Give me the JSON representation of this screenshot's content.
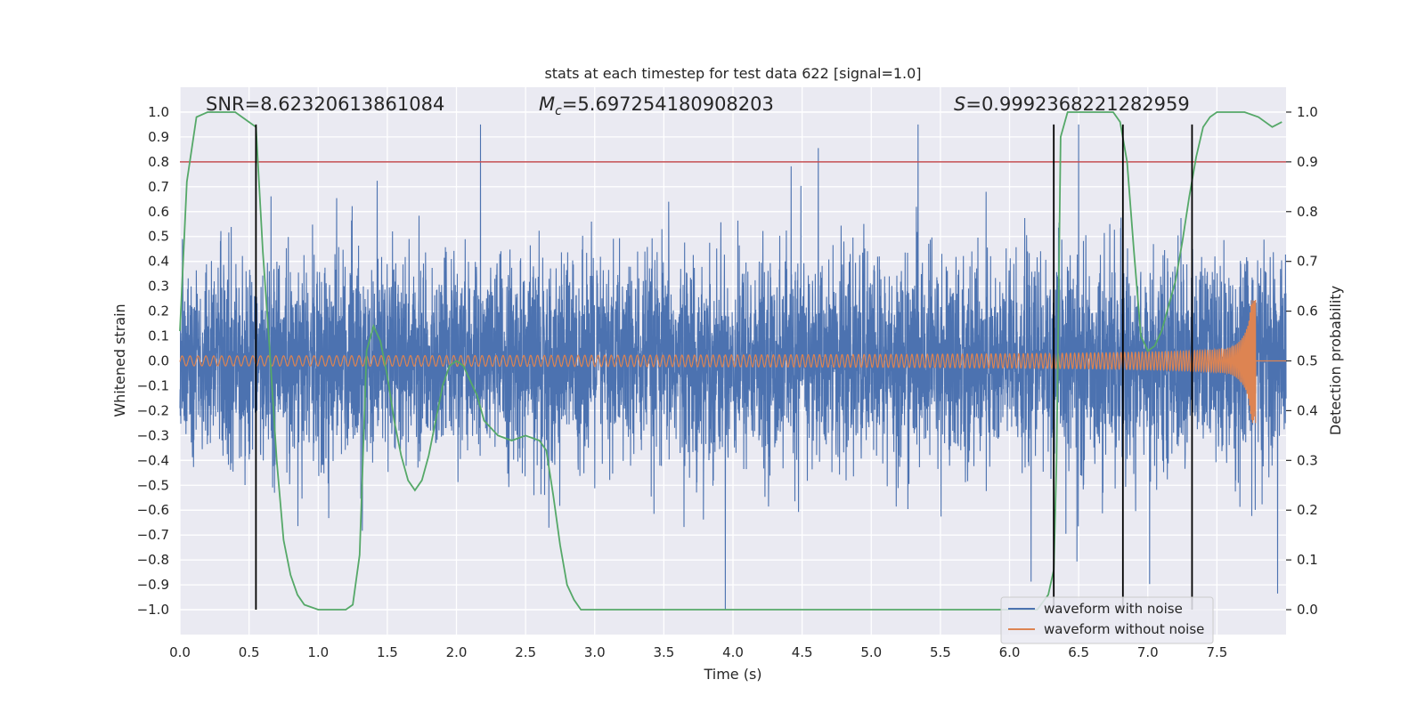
{
  "chart_data": {
    "type": "line",
    "title": "stats at each timestep for test data 622 [signal=1.0]",
    "xlabel": "Time (s)",
    "ylabel": "Whitened strain",
    "y2label": "Detection probability",
    "xlim": [
      0.0,
      8.0
    ],
    "ylim": [
      -1.1,
      1.1
    ],
    "y2lim": [
      -0.05,
      1.05
    ],
    "x_ticks": [
      0.0,
      0.5,
      1.0,
      1.5,
      2.0,
      2.5,
      3.0,
      3.5,
      4.0,
      4.5,
      5.0,
      5.5,
      6.0,
      6.5,
      7.0,
      7.5
    ],
    "x_tick_labels": [
      "0.0",
      "0.5",
      "1.0",
      "1.5",
      "2.0",
      "2.5",
      "3.0",
      "3.5",
      "4.0",
      "4.5",
      "5.0",
      "5.5",
      "6.0",
      "6.5",
      "7.0",
      "7.5"
    ],
    "y_ticks": [
      1.0,
      0.9,
      0.8,
      0.7,
      0.6,
      0.5,
      0.4,
      0.3,
      0.2,
      0.1,
      0.0,
      -0.1,
      -0.2,
      -0.3,
      -0.4,
      -0.5,
      -0.6,
      -0.7,
      -0.8,
      -0.9,
      -1.0
    ],
    "y_tick_labels": [
      "1.0",
      "0.9",
      "0.8",
      "0.7",
      "0.6",
      "0.5",
      "0.4",
      "0.3",
      "0.2",
      "0.1",
      "0.0",
      "−0.1",
      "−0.2",
      "−0.3",
      "−0.4",
      "−0.5",
      "−0.6",
      "−0.7",
      "−0.8",
      "−0.9",
      "−1.0"
    ],
    "y2_ticks": [
      1.0,
      0.9,
      0.8,
      0.7,
      0.6,
      0.5,
      0.4,
      0.3,
      0.2,
      0.1,
      0.0
    ],
    "y2_tick_labels": [
      "1.0",
      "0.9",
      "0.8",
      "0.7",
      "0.6",
      "0.5",
      "0.4",
      "0.3",
      "0.2",
      "0.1",
      "0.0"
    ],
    "annotations": {
      "snr": "SNR=8.62320613861084",
      "mc_symbol": "M",
      "mc_sub": "c",
      "mc_value": "=5.697254180908203",
      "s_symbol": "S",
      "s_value": "=0.9992368221282959"
    },
    "threshold": {
      "value": 0.9,
      "axis": "y2",
      "color": "#c44e52"
    },
    "event_lines_x": [
      0.55,
      6.32,
      6.82,
      7.32
    ],
    "event_lines_range": [
      -1.0,
      0.95
    ],
    "series": [
      {
        "name": "waveform with noise",
        "color": "#4c72b0",
        "noise_sigma": 0.22,
        "description_of_rendering": "dense noise band"
      },
      {
        "name": "waveform without noise",
        "color": "#dd8452",
        "merger_time": 7.78,
        "peak_amplitude": 0.25,
        "base_amplitude": 0.02
      },
      {
        "name": "detection probability",
        "axis": "y2",
        "color": "#55a868",
        "x": [
          0.0,
          0.05,
          0.12,
          0.2,
          0.3,
          0.4,
          0.5,
          0.55,
          0.6,
          0.65,
          0.7,
          0.75,
          0.8,
          0.85,
          0.9,
          1.0,
          1.1,
          1.2,
          1.25,
          1.3,
          1.35,
          1.4,
          1.45,
          1.5,
          1.55,
          1.6,
          1.65,
          1.7,
          1.75,
          1.8,
          1.85,
          1.9,
          1.95,
          2.0,
          2.05,
          2.1,
          2.15,
          2.2,
          2.3,
          2.4,
          2.5,
          2.6,
          2.65,
          2.7,
          2.75,
          2.8,
          2.85,
          2.9,
          3.0,
          4.0,
          5.0,
          6.0,
          6.2,
          6.28,
          6.32,
          6.34,
          6.37,
          6.42,
          6.5,
          6.6,
          6.7,
          6.75,
          6.8,
          6.85,
          6.9,
          6.95,
          7.0,
          7.05,
          7.1,
          7.15,
          7.2,
          7.25,
          7.3,
          7.35,
          7.4,
          7.45,
          7.5,
          7.6,
          7.7,
          7.8,
          7.9,
          7.97
        ],
        "values": [
          0.56,
          0.86,
          0.99,
          1.0,
          1.0,
          1.0,
          0.98,
          0.97,
          0.72,
          0.52,
          0.3,
          0.14,
          0.07,
          0.03,
          0.01,
          0.0,
          0.0,
          0.0,
          0.01,
          0.11,
          0.52,
          0.57,
          0.54,
          0.47,
          0.38,
          0.31,
          0.26,
          0.24,
          0.26,
          0.31,
          0.38,
          0.45,
          0.49,
          0.5,
          0.49,
          0.46,
          0.43,
          0.38,
          0.35,
          0.34,
          0.35,
          0.34,
          0.32,
          0.23,
          0.13,
          0.05,
          0.02,
          0.0,
          0.0,
          0.0,
          0.0,
          0.0,
          0.0,
          0.03,
          0.08,
          0.3,
          0.95,
          1.0,
          1.0,
          1.0,
          1.0,
          1.0,
          0.98,
          0.9,
          0.72,
          0.55,
          0.52,
          0.53,
          0.56,
          0.61,
          0.66,
          0.74,
          0.83,
          0.91,
          0.97,
          0.99,
          1.0,
          1.0,
          1.0,
          0.99,
          0.97,
          0.98
        ]
      }
    ],
    "legend": {
      "placement": "lower-right",
      "entries": [
        "waveform with noise",
        "waveform without noise"
      ]
    }
  }
}
